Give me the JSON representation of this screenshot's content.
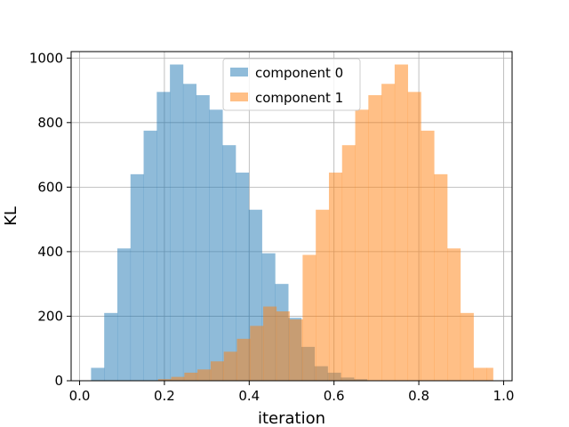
{
  "chart_data": {
    "type": "bar",
    "subtype": "histogram",
    "xlabel": "iteration",
    "ylabel": "KL",
    "xlim": [
      -0.02,
      1.02
    ],
    "ylim": [
      0,
      1020
    ],
    "xticks": [
      0.0,
      0.2,
      0.4,
      0.6,
      0.8,
      1.0
    ],
    "xtick_labels": [
      "0.0",
      "0.2",
      "0.4",
      "0.6",
      "0.8",
      "1.0"
    ],
    "yticks": [
      0,
      200,
      400,
      600,
      800,
      1000
    ],
    "ytick_labels": [
      "0",
      "200",
      "400",
      "600",
      "800",
      "1000"
    ],
    "grid": true,
    "legend_position": "top-center",
    "series": [
      {
        "name": "component 0",
        "color": "#1f77b4",
        "alpha": 0.5,
        "bin_edges": [
          0.027,
          0.058,
          0.089,
          0.12,
          0.151,
          0.182,
          0.213,
          0.244,
          0.275,
          0.306,
          0.337,
          0.368,
          0.399,
          0.43,
          0.461,
          0.492,
          0.523,
          0.554,
          0.585,
          0.616,
          0.647,
          0.678
        ],
        "counts": [
          40,
          210,
          410,
          640,
          775,
          895,
          980,
          920,
          885,
          840,
          730,
          645,
          530,
          395,
          300,
          195,
          105,
          45,
          25,
          10,
          5
        ]
      },
      {
        "name": "component 1",
        "color": "#ff7f0e",
        "alpha": 0.5,
        "bin_edges": [
          0.185,
          0.216,
          0.247,
          0.278,
          0.309,
          0.34,
          0.371,
          0.402,
          0.433,
          0.464,
          0.495,
          0.526,
          0.557,
          0.588,
          0.619,
          0.65,
          0.681,
          0.712,
          0.743,
          0.774,
          0.805,
          0.836,
          0.867,
          0.898,
          0.929,
          0.96,
          0.975
        ],
        "counts": [
          5,
          12,
          25,
          35,
          60,
          90,
          130,
          170,
          230,
          215,
          190,
          390,
          530,
          645,
          730,
          840,
          885,
          920,
          980,
          895,
          775,
          640,
          410,
          210,
          40,
          40
        ]
      }
    ]
  }
}
